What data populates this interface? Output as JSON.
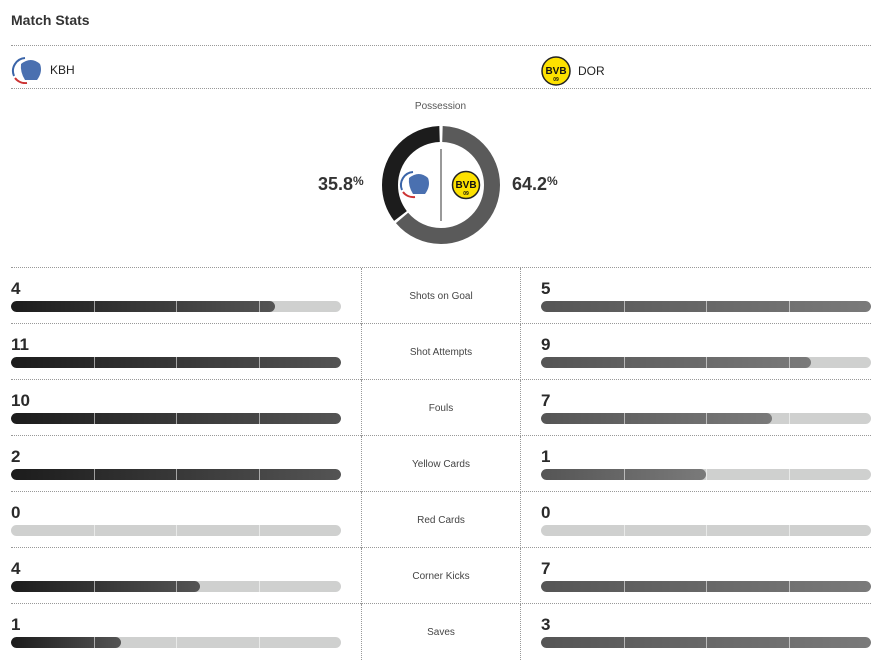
{
  "title": "Match Stats",
  "home": {
    "abbr": "KBH",
    "possession": "35.8",
    "color": "#1c1c1c"
  },
  "away": {
    "abbr": "DOR",
    "possession": "64.2",
    "color": "#5a5a5a"
  },
  "possession_label": "Possession",
  "pct_sign": "%",
  "stats": [
    {
      "label": "Shots on Goal",
      "home": 4,
      "away": 5
    },
    {
      "label": "Shot Attempts",
      "home": 11,
      "away": 9
    },
    {
      "label": "Fouls",
      "home": 10,
      "away": 7
    },
    {
      "label": "Yellow Cards",
      "home": 2,
      "away": 1
    },
    {
      "label": "Red Cards",
      "home": 0,
      "away": 0
    },
    {
      "label": "Corner Kicks",
      "home": 4,
      "away": 7
    },
    {
      "label": "Saves",
      "home": 1,
      "away": 3
    }
  ]
}
